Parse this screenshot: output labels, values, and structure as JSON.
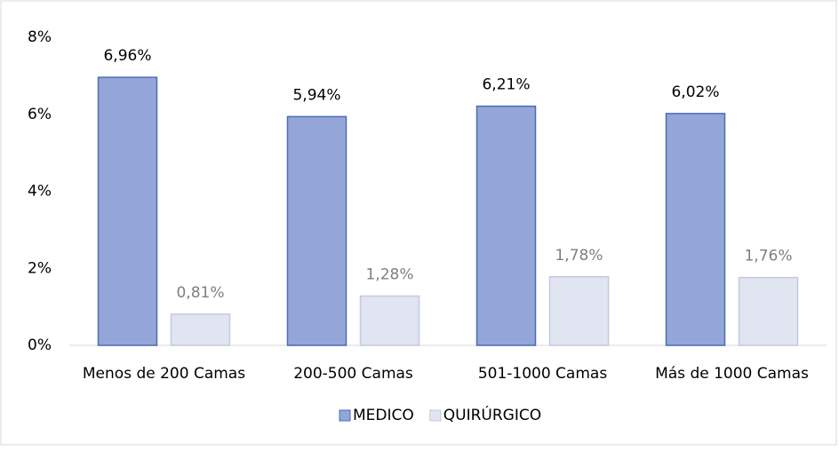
{
  "chart_data": {
    "type": "bar",
    "categories": [
      "Menos de 200 Camas",
      "200-500 Camas",
      "501-1000 Camas",
      "Más de 1000 Camas"
    ],
    "series": [
      {
        "name": "MEDICO",
        "color": "#94a6d8",
        "values": [
          6.96,
          5.94,
          6.21,
          6.02
        ],
        "value_labels": [
          "6,96%",
          "5,94%",
          "6,21%",
          "6,02%"
        ]
      },
      {
        "name": "QUIRÚRGICO",
        "color": "#e1e5f1",
        "values": [
          0.81,
          1.28,
          1.78,
          1.76
        ],
        "value_labels": [
          "0,81%",
          "1,28%",
          "1,78%",
          "1,76%"
        ]
      }
    ],
    "ylim": [
      0,
      8
    ],
    "yticks": [
      {
        "value": 0,
        "label": "0%"
      },
      {
        "value": 2,
        "label": "2%"
      },
      {
        "value": 4,
        "label": "4%"
      },
      {
        "value": 6,
        "label": "6%"
      },
      {
        "value": 8,
        "label": "8%"
      }
    ],
    "grid": false,
    "legend": "bottom"
  }
}
